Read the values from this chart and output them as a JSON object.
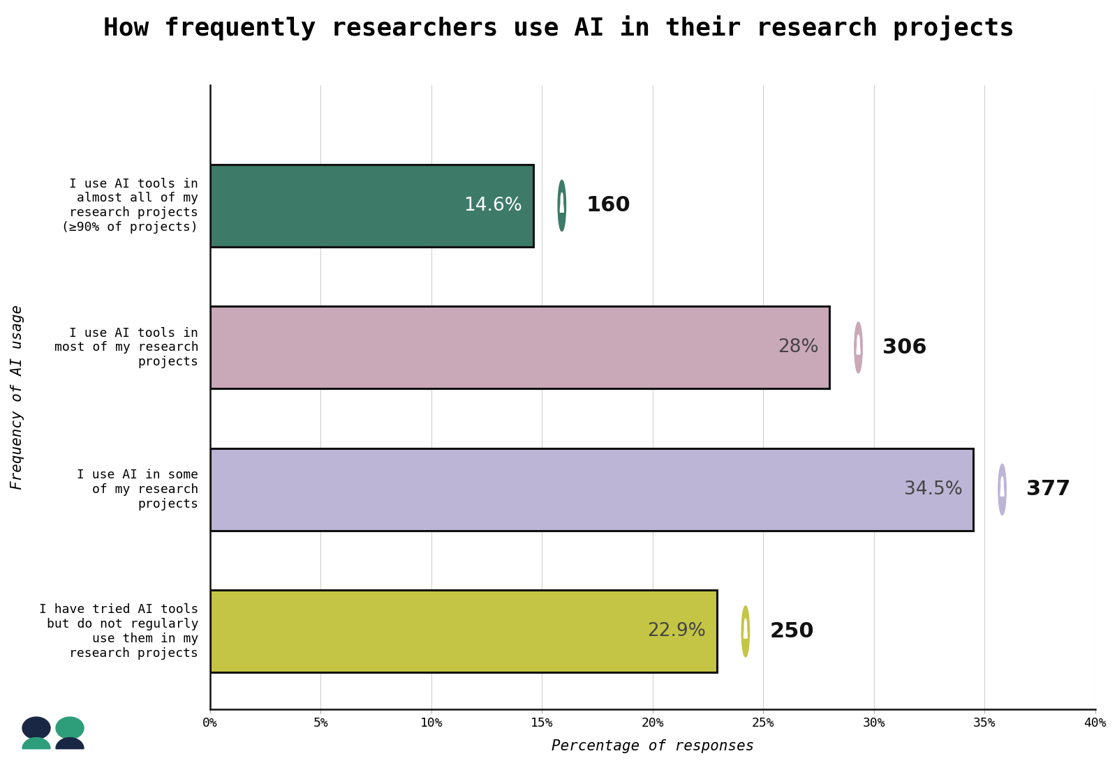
{
  "title": "How frequently researchers use AI in their research projects",
  "categories": [
    "I use AI tools in\nalmost all of my\nresearch projects\n(≥90% of projects)",
    "I use AI tools in\nmost of my research\nprojects",
    "I use AI in some\nof my research\nprojects",
    "I have tried AI tools\nbut do not regularly\nuse them in my\nresearch projects"
  ],
  "values": [
    14.6,
    28.0,
    34.5,
    22.9
  ],
  "counts": [
    160,
    306,
    377,
    250
  ],
  "pct_labels": [
    "14.6%",
    "28%",
    "34.5%",
    "22.9%"
  ],
  "bar_colors": [
    "#3d7a68",
    "#c9a8b8",
    "#bdb5d5",
    "#c5c545"
  ],
  "bar_edge_color": "#111111",
  "icon_colors": [
    "#3d7a68",
    "#c9a8b8",
    "#bdb5d5",
    "#c5c545"
  ],
  "xlabel": "Percentage of responses",
  "ylabel": "Frequency of AI usage",
  "xlim": [
    0,
    40
  ],
  "xticks": [
    0,
    5,
    10,
    15,
    20,
    25,
    30,
    35,
    40
  ],
  "xtick_labels": [
    "0%",
    "5%",
    "10%",
    "15%",
    "20%",
    "25%",
    "30%",
    "35%",
    "40%"
  ],
  "background_color": "#ffffff",
  "title_fontsize": 26,
  "label_fontsize": 13,
  "bar_label_fontsize": 19,
  "count_fontsize": 22,
  "axis_label_fontsize": 15,
  "tick_fontsize": 13,
  "logo_dark": "#1a2744",
  "logo_teal": "#2e9e7a"
}
